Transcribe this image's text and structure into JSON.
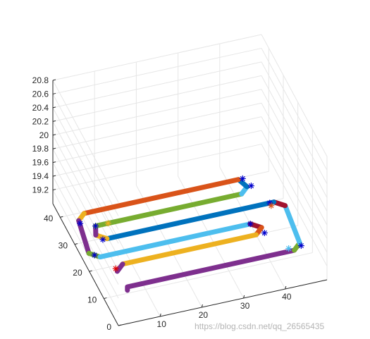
{
  "chart_data": {
    "type": "line",
    "projection": "3d",
    "title": "",
    "xlabel": "",
    "ylabel": "",
    "zlabel": "",
    "xlim": [
      0,
      50
    ],
    "ylim": [
      0,
      45
    ],
    "zlim": [
      19,
      20.8
    ],
    "grid": true,
    "box": true,
    "x_ticks": [
      "10",
      "20",
      "30",
      "40"
    ],
    "y_ticks": [
      "0",
      "10",
      "20",
      "30",
      "40"
    ],
    "z_ticks": [
      "19.2",
      "19.4",
      "19.6",
      "19.8",
      "20",
      "20.2",
      "20.4",
      "20.6",
      "20.8"
    ],
    "line_segments": [
      {
        "color": "#7E2F8E",
        "points": [
          [
            6,
            11,
            19
          ],
          [
            6,
            11,
            19.05
          ],
          [
            28,
            11,
            19.05
          ],
          [
            46,
            11,
            19.05
          ]
        ]
      },
      {
        "color": "#77AC30",
        "points": [
          [
            46,
            11,
            19.05
          ],
          [
            48,
            13,
            19.05
          ]
        ]
      },
      {
        "color": "#4DBEEE",
        "points": [
          [
            48,
            13,
            19.05
          ],
          [
            48,
            23,
            19.2
          ]
        ]
      },
      {
        "color": "#A2142F",
        "points": [
          [
            48,
            23,
            19.2
          ],
          [
            46,
            25,
            19.2
          ]
        ]
      },
      {
        "color": "#0072BD",
        "points": [
          [
            46,
            25,
            19.2
          ],
          [
            6,
            25,
            19.2
          ]
        ]
      },
      {
        "color": "#EDB120",
        "points": [
          [
            6,
            25,
            19.2
          ],
          [
            4,
            27,
            19.2
          ]
        ]
      },
      {
        "color": "#7E2F8E",
        "points": [
          [
            4,
            27,
            19.2
          ],
          [
            5,
            30,
            19.2
          ]
        ]
      },
      {
        "color": "#77AC30",
        "points": [
          [
            5,
            30,
            19.2
          ],
          [
            40,
            30,
            19.2
          ]
        ]
      },
      {
        "color": "#4DBEEE",
        "points": [
          [
            40,
            30,
            19.2
          ],
          [
            42,
            32,
            19.2
          ]
        ]
      },
      {
        "color": "#0072BD",
        "points": [
          [
            42,
            32,
            19.2
          ],
          [
            41,
            35,
            19.2
          ]
        ]
      },
      {
        "color": "#D95319",
        "points": [
          [
            41,
            35,
            19.2
          ],
          [
            4,
            35,
            19.2
          ]
        ]
      },
      {
        "color": "#EDB120",
        "points": [
          [
            4,
            35,
            19.2
          ],
          [
            2,
            33,
            19.2
          ]
        ]
      },
      {
        "color": "#7E2F8E",
        "points": [
          [
            2,
            33,
            19.2
          ],
          [
            2,
            26,
            19.0
          ]
        ]
      },
      {
        "color": "#77AC30",
        "points": [
          [
            2,
            26,
            19.0
          ],
          [
            4,
            24,
            19.0
          ]
        ]
      },
      {
        "color": "#4DBEEE",
        "points": [
          [
            4,
            24,
            19.0
          ],
          [
            40,
            24,
            19.0
          ]
        ]
      },
      {
        "color": "#A2142F",
        "points": [
          [
            40,
            24,
            19.0
          ],
          [
            42,
            22,
            19.0
          ]
        ]
      },
      {
        "color": "#D95319",
        "points": [
          [
            42,
            22,
            19.0
          ],
          [
            40,
            20,
            19.0
          ]
        ]
      },
      {
        "color": "#EDB120",
        "points": [
          [
            40,
            20,
            19.0
          ],
          [
            8,
            20,
            19.0
          ]
        ]
      },
      {
        "color": "#7E2F8E",
        "points": [
          [
            8,
            20,
            19.0
          ],
          [
            6,
            18,
            19.0
          ]
        ]
      }
    ],
    "markers": [
      {
        "symbol": "*",
        "color": "#0000CC",
        "point": [
          2,
          32,
          19.2
        ]
      },
      {
        "symbol": "*",
        "color": "#0000CC",
        "point": [
          42,
          35,
          19.2
        ]
      },
      {
        "symbol": "*",
        "color": "#0000CC",
        "point": [
          43,
          32,
          19.2
        ]
      },
      {
        "symbol": "*",
        "color": "#0000CC",
        "point": [
          5,
          30,
          19.2
        ]
      },
      {
        "symbol": "*",
        "color": "#0000CC",
        "point": [
          5,
          25,
          19.2
        ]
      },
      {
        "symbol": "*",
        "color": "#0000CC",
        "point": [
          3,
          25,
          19.0
        ]
      },
      {
        "symbol": "*",
        "color": "#0000CC",
        "point": [
          45,
          25,
          19.2
        ]
      },
      {
        "symbol": "*",
        "color": "#0000CC",
        "point": [
          40,
          24,
          19.0
        ]
      },
      {
        "symbol": "*",
        "color": "#0000CC",
        "point": [
          42,
          20,
          19.0
        ]
      },
      {
        "symbol": "*",
        "color": "#0000CC",
        "point": [
          48,
          12,
          19.05
        ]
      },
      {
        "symbol": "*",
        "color": "#EDB120",
        "point": [
          8,
          30,
          19.2
        ]
      },
      {
        "symbol": "*",
        "color": "#D95319",
        "point": [
          45,
          24,
          19.2
        ]
      },
      {
        "symbol": "*",
        "color": "#4DBEEE",
        "point": [
          45,
          12,
          19.05
        ]
      },
      {
        "symbol": "*",
        "color": "#E00000",
        "point": [
          6,
          19,
          19.0
        ]
      }
    ]
  },
  "watermark": "https://blog.csdn.net/qq_26565435"
}
